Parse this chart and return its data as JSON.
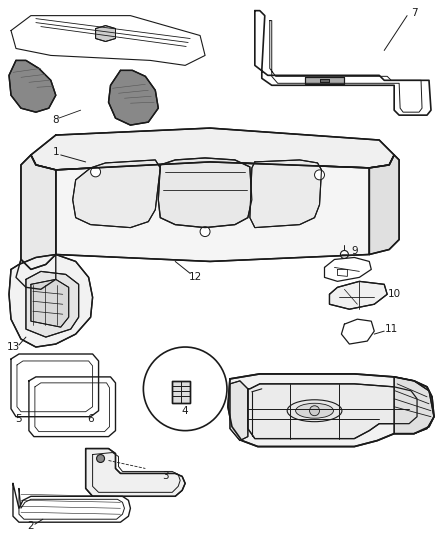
{
  "bg_color": "#ffffff",
  "fig_width": 4.38,
  "fig_height": 5.33,
  "dpi": 100,
  "line_color": "#1a1a1a",
  "label_fontsize": 7.5
}
